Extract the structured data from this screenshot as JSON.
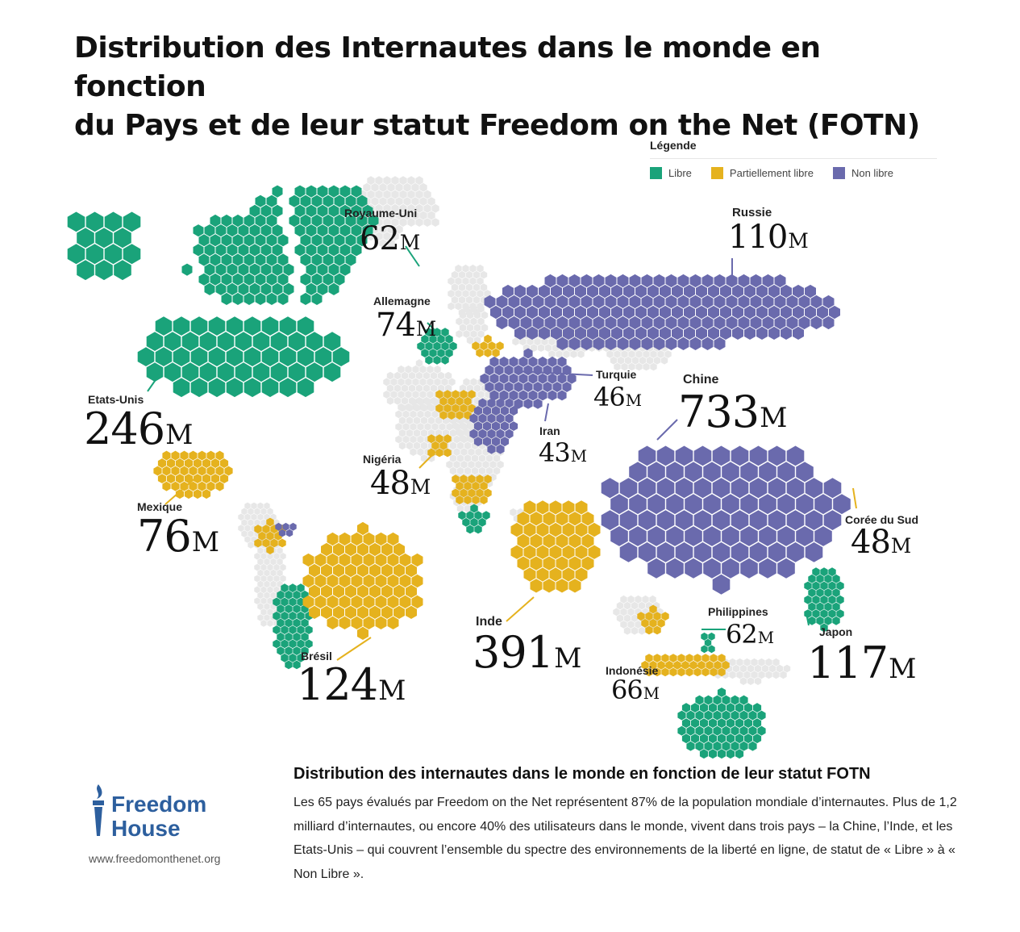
{
  "title": {
    "line1": "Distribution des Internautes dans le monde en fonction",
    "line2": "du Pays et de leur statut Freedom on the Net (FOTN)"
  },
  "colors": {
    "libre": "#1aa37a",
    "partiel": "#e5b21e",
    "non_libre": "#6a6aad",
    "unrated": "#e7e7e7",
    "logo": "#2d5f9e"
  },
  "legend": {
    "title": "Légende",
    "items": [
      {
        "label": "Libre",
        "color": "#1aa37a"
      },
      {
        "label": "Partiellement libre",
        "color": "#e5b21e"
      },
      {
        "label": "Non libre",
        "color": "#6a6aad"
      }
    ]
  },
  "countries": [
    {
      "name": "Royaume-Uni",
      "value": "62",
      "unit": "M",
      "status": "libre"
    },
    {
      "name": "Russie",
      "value": "110",
      "unit": "M",
      "status": "non_libre"
    },
    {
      "name": "Allemagne",
      "value": "74",
      "unit": "M",
      "status": "libre"
    },
    {
      "name": "Turquie",
      "value": "46",
      "unit": "M",
      "status": "non_libre"
    },
    {
      "name": "Chine",
      "value": "733",
      "unit": "M",
      "status": "non_libre"
    },
    {
      "name": "Etats-Unis",
      "value": "246",
      "unit": "M",
      "status": "libre"
    },
    {
      "name": "Iran",
      "value": "43",
      "unit": "M",
      "status": "non_libre"
    },
    {
      "name": "Nigéria",
      "value": "48",
      "unit": "M",
      "status": "partiel"
    },
    {
      "name": "Mexique",
      "value": "76",
      "unit": "M",
      "status": "partiel"
    },
    {
      "name": "Corée du Sud",
      "value": "48",
      "unit": "M",
      "status": "partiel"
    },
    {
      "name": "Inde",
      "value": "391",
      "unit": "M",
      "status": "partiel"
    },
    {
      "name": "Philippines",
      "value": "62",
      "unit": "M",
      "status": "libre"
    },
    {
      "name": "Japon",
      "value": "117",
      "unit": "M",
      "status": "libre"
    },
    {
      "name": "Brésil",
      "value": "124",
      "unit": "M",
      "status": "partiel"
    },
    {
      "name": "Indonésie",
      "value": "66",
      "unit": "M",
      "status": "partiel"
    }
  ],
  "bottom": {
    "heading": "Distribution des internautes dans le monde en fonction de leur statut FOTN",
    "body": "Les 65 pays évalués par Freedom on the Net représentent 87% de la population mondiale d’internautes. Plus de 1,2 milliard d’internautes, ou encore 40% des utilisateurs dans le monde, vivent dans trois pays – la Chine, l’Inde, et les Etats-Unis – qui couvrent l’ensemble du spectre des environnements de la liberté en ligne, de statut de « Libre » à « Non Libre »."
  },
  "logo": {
    "line1": "Freedom",
    "line2": "House",
    "url": "www.freedomonthenet.org",
    "icon": "torch-icon"
  }
}
